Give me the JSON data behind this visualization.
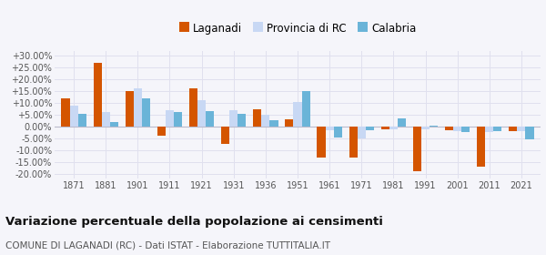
{
  "years": [
    1871,
    1881,
    1901,
    1911,
    1921,
    1931,
    1936,
    1951,
    1961,
    1971,
    1981,
    1991,
    2001,
    2011,
    2021
  ],
  "laganadi": [
    12.0,
    27.0,
    15.0,
    -4.0,
    16.0,
    -7.5,
    7.5,
    3.0,
    -13.0,
    -13.0,
    -1.0,
    -19.0,
    -1.5,
    -17.0,
    -2.0
  ],
  "provincia_rc": [
    9.0,
    6.0,
    16.0,
    7.0,
    11.0,
    7.0,
    5.0,
    10.5,
    -1.5,
    -5.0,
    -1.0,
    -1.0,
    -2.0,
    -2.5,
    -2.0
  ],
  "calabria": [
    5.5,
    2.0,
    12.0,
    6.0,
    6.5,
    5.5,
    2.5,
    15.0,
    -4.5,
    -1.5,
    3.5,
    0.5,
    -2.5,
    -2.0,
    -5.5
  ],
  "color_laganadi": "#d45500",
  "color_provincia": "#c8d8f4",
  "color_calabria": "#6ab4d8",
  "title": "Variazione percentuale della popolazione ai censimenti",
  "subtitle": "COMUNE DI LAGANADI (RC) - Dati ISTAT - Elaborazione TUTTITALIA.IT",
  "legend_labels": [
    "Laganadi",
    "Provincia di RC",
    "Calabria"
  ],
  "ylim": [
    -22,
    32
  ],
  "yticks": [
    -20,
    -15,
    -10,
    -5,
    0,
    5,
    10,
    15,
    20,
    25,
    30
  ],
  "background_color": "#f5f5fa",
  "grid_color": "#e0e0ee"
}
